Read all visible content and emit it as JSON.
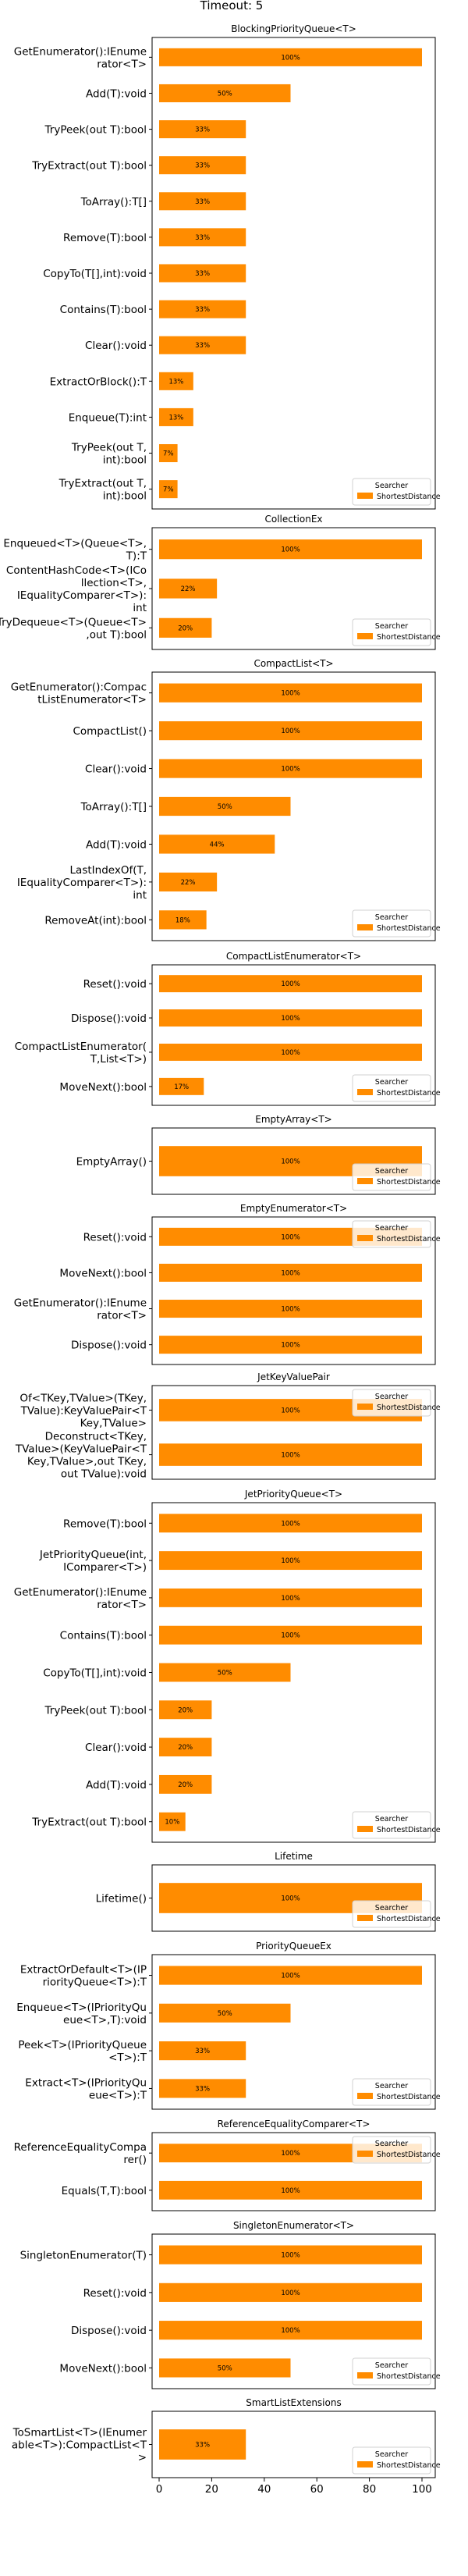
{
  "figure": {
    "title": "Timeout: 5",
    "legend_title": "Searcher",
    "legend_label": "ShortestDistance",
    "bar_color": "#ff8c00"
  },
  "chart_data": [
    {
      "type": "bar",
      "orientation": "horizontal",
      "title": "BlockingPriorityQueue<T>",
      "categories": [
        "GetEnumerator():IEnumerator<T>",
        "Add(T):void",
        "TryPeek(out T):bool",
        "TryExtract(out T):bool",
        "ToArray():T[]",
        "Remove(T):bool",
        "CopyTo(T[],int):void",
        "Contains(T):bool",
        "Clear():void",
        "ExtractOrBlock():T",
        "Enqueue(T):int",
        "TryPeek(out T,int):bool",
        "TryExtract(out T,int):bool"
      ],
      "values": [
        100,
        50,
        33,
        33,
        33,
        33,
        33,
        33,
        33,
        13,
        13,
        7,
        7
      ],
      "labels": [
        "100%",
        "50%",
        "33%",
        "33%",
        "33%",
        "33%",
        "33%",
        "33%",
        "33%",
        "13%",
        "13%",
        "7%",
        "7%"
      ],
      "series": [
        {
          "name": "ShortestDistance"
        }
      ],
      "xlim": [
        0,
        100
      ],
      "legend_position": "lower-right"
    },
    {
      "type": "bar",
      "orientation": "horizontal",
      "title": "CollectionEx",
      "categories": [
        "Enqueued<T>(Queue<T>,T):T",
        "ContentHashCode<T>(ICollection<T>,IEqualityComparer<T>):int",
        "TryDequeue<T>(Queue<T>,out T):bool"
      ],
      "values": [
        100,
        22,
        20
      ],
      "labels": [
        "100%",
        "22%",
        "20%"
      ],
      "series": [
        {
          "name": "ShortestDistance"
        }
      ],
      "xlim": [
        0,
        100
      ],
      "legend_position": "lower-right"
    },
    {
      "type": "bar",
      "orientation": "horizontal",
      "title": "CompactList<T>",
      "categories": [
        "GetEnumerator():CompactListEnumerator<T>",
        "CompactList()",
        "Clear():void",
        "ToArray():T[]",
        "Add(T):void",
        "LastIndexOf(T,IEqualityComparer<T>):int",
        "RemoveAt(int):bool"
      ],
      "values": [
        100,
        100,
        100,
        50,
        44,
        22,
        18
      ],
      "labels": [
        "100%",
        "100%",
        "100%",
        "50%",
        "44%",
        "22%",
        "18%"
      ],
      "series": [
        {
          "name": "ShortestDistance"
        }
      ],
      "xlim": [
        0,
        100
      ],
      "legend_position": "lower-right"
    },
    {
      "type": "bar",
      "orientation": "horizontal",
      "title": "CompactListEnumerator<T>",
      "categories": [
        "Reset():void",
        "Dispose():void",
        "CompactListEnumerator(T,List<T>)",
        "MoveNext():bool"
      ],
      "values": [
        100,
        100,
        100,
        17
      ],
      "labels": [
        "100%",
        "100%",
        "100%",
        "17%"
      ],
      "series": [
        {
          "name": "ShortestDistance"
        }
      ],
      "xlim": [
        0,
        100
      ],
      "legend_position": "lower-right"
    },
    {
      "type": "bar",
      "orientation": "horizontal",
      "title": "EmptyArray<T>",
      "categories": [
        "EmptyArray()"
      ],
      "values": [
        100
      ],
      "labels": [
        "100%"
      ],
      "series": [
        {
          "name": "ShortestDistance"
        }
      ],
      "xlim": [
        0,
        100
      ],
      "legend_position": "lower-right"
    },
    {
      "type": "bar",
      "orientation": "horizontal",
      "title": "EmptyEnumerator<T>",
      "categories": [
        "Reset():void",
        "MoveNext():bool",
        "GetEnumerator():IEnumerator<T>",
        "Dispose():void"
      ],
      "values": [
        100,
        100,
        100,
        100
      ],
      "labels": [
        "100%",
        "100%",
        "100%",
        "100%"
      ],
      "series": [
        {
          "name": "ShortestDistance"
        }
      ],
      "xlim": [
        0,
        100
      ],
      "legend_position": "upper-right"
    },
    {
      "type": "bar",
      "orientation": "horizontal",
      "title": "JetKeyValuePair",
      "categories": [
        "Of<TKey,TValue>(TKey,TValue):KeyValuePair<TKey,TValue>",
        "Deconstruct<TKey,TValue>(KeyValuePair<TKey,TValue>,out TKey,out TValue):void"
      ],
      "values": [
        100,
        100
      ],
      "labels": [
        "100%",
        "100%"
      ],
      "series": [
        {
          "name": "ShortestDistance"
        }
      ],
      "xlim": [
        0,
        100
      ],
      "legend_position": "upper-right"
    },
    {
      "type": "bar",
      "orientation": "horizontal",
      "title": "JetPriorityQueue<T>",
      "categories": [
        "Remove(T):bool",
        "JetPriorityQueue(int,IComparer<T>)",
        "GetEnumerator():IEnumerator<T>",
        "Contains(T):bool",
        "CopyTo(T[],int):void",
        "TryPeek(out T):bool",
        "Clear():void",
        "Add(T):void",
        "TryExtract(out T):bool"
      ],
      "values": [
        100,
        100,
        100,
        100,
        50,
        20,
        20,
        20,
        10
      ],
      "labels": [
        "100%",
        "100%",
        "100%",
        "100%",
        "50%",
        "20%",
        "20%",
        "20%",
        "10%"
      ],
      "series": [
        {
          "name": "ShortestDistance"
        }
      ],
      "xlim": [
        0,
        100
      ],
      "legend_position": "lower-right"
    },
    {
      "type": "bar",
      "orientation": "horizontal",
      "title": "Lifetime",
      "categories": [
        "Lifetime()"
      ],
      "values": [
        100
      ],
      "labels": [
        "100%"
      ],
      "series": [
        {
          "name": "ShortestDistance"
        }
      ],
      "xlim": [
        0,
        100
      ],
      "legend_position": "lower-right"
    },
    {
      "type": "bar",
      "orientation": "horizontal",
      "title": "PriorityQueueEx",
      "categories": [
        "ExtractOrDefault<T>(IPriorityQueue<T>):T",
        "Enqueue<T>(IPriorityQueue<T>,T):void",
        "Peek<T>(IPriorityQueue<T>):T",
        "Extract<T>(IPriorityQueue<T>):T"
      ],
      "values": [
        100,
        50,
        33,
        33
      ],
      "labels": [
        "100%",
        "50%",
        "33%",
        "33%"
      ],
      "series": [
        {
          "name": "ShortestDistance"
        }
      ],
      "xlim": [
        0,
        100
      ],
      "legend_position": "lower-right"
    },
    {
      "type": "bar",
      "orientation": "horizontal",
      "title": "ReferenceEqualityComparer<T>",
      "categories": [
        "ReferenceEqualityComparer()",
        "Equals(T,T):bool"
      ],
      "values": [
        100,
        100
      ],
      "labels": [
        "100%",
        "100%"
      ],
      "series": [
        {
          "name": "ShortestDistance"
        }
      ],
      "xlim": [
        0,
        100
      ],
      "legend_position": "upper-right"
    },
    {
      "type": "bar",
      "orientation": "horizontal",
      "title": "SingletonEnumerator<T>",
      "categories": [
        "SingletonEnumerator(T)",
        "Reset():void",
        "Dispose():void",
        "MoveNext():bool"
      ],
      "values": [
        100,
        100,
        100,
        50
      ],
      "labels": [
        "100%",
        "100%",
        "100%",
        "50%"
      ],
      "series": [
        {
          "name": "ShortestDistance"
        }
      ],
      "xlim": [
        0,
        100
      ],
      "legend_position": "lower-right"
    },
    {
      "type": "bar",
      "orientation": "horizontal",
      "title": "SmartListExtensions",
      "categories": [
        "ToSmartList<T>(IEnumerable<T>):CompactList<T>"
      ],
      "values": [
        33
      ],
      "labels": [
        "33%"
      ],
      "series": [
        {
          "name": "ShortestDistance"
        }
      ],
      "xlim": [
        0,
        100
      ],
      "xticks": [
        0,
        20,
        40,
        60,
        80,
        100
      ],
      "legend_position": "lower-right"
    }
  ]
}
